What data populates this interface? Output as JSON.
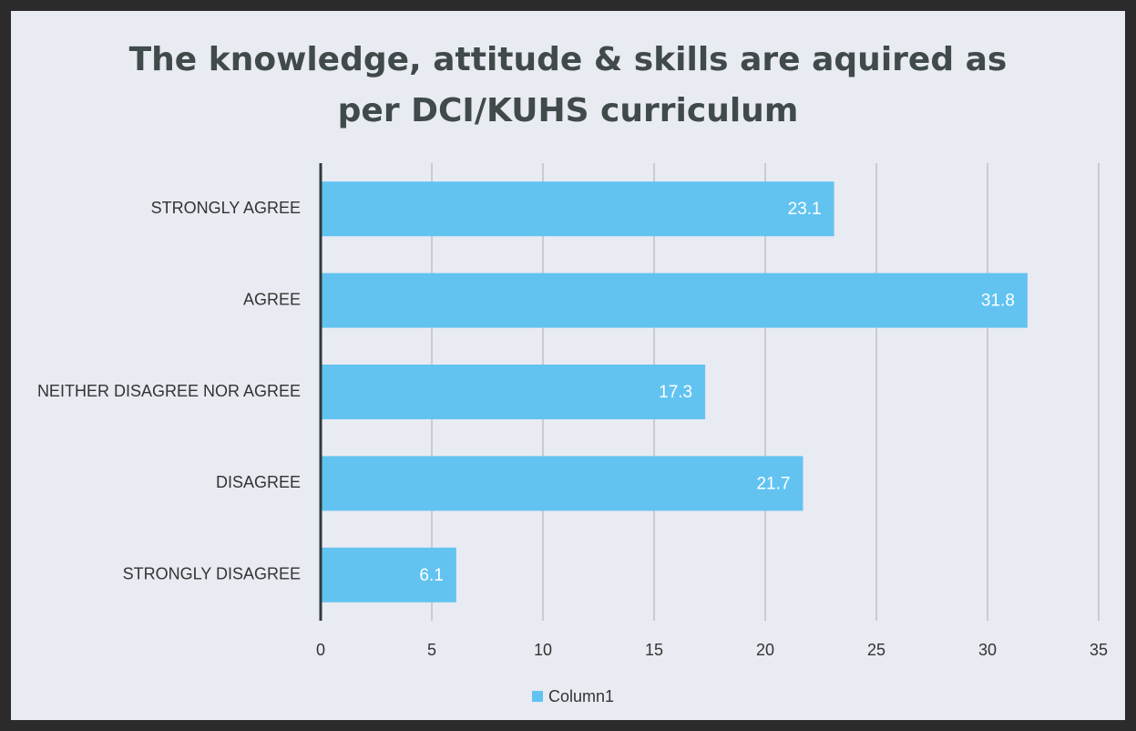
{
  "chart_data": {
    "type": "bar",
    "orientation": "horizontal",
    "title": "The knowledge, attitude & skills are aquired as per DCI/KUHS curriculum",
    "categories": [
      "STRONGLY AGREE",
      "AGREE",
      "NEITHER DISAGREE NOR AGREE",
      "DISAGREE",
      "STRONGLY DISAGREE"
    ],
    "series": [
      {
        "name": "Column1",
        "color": "#62c3f1",
        "values": [
          23.1,
          31.8,
          17.3,
          21.7,
          6.1
        ]
      }
    ],
    "xlim": [
      0,
      35
    ],
    "xticks": [
      0,
      5,
      10,
      15,
      20,
      25,
      30,
      35
    ],
    "grid": true,
    "legend": "bottom"
  }
}
